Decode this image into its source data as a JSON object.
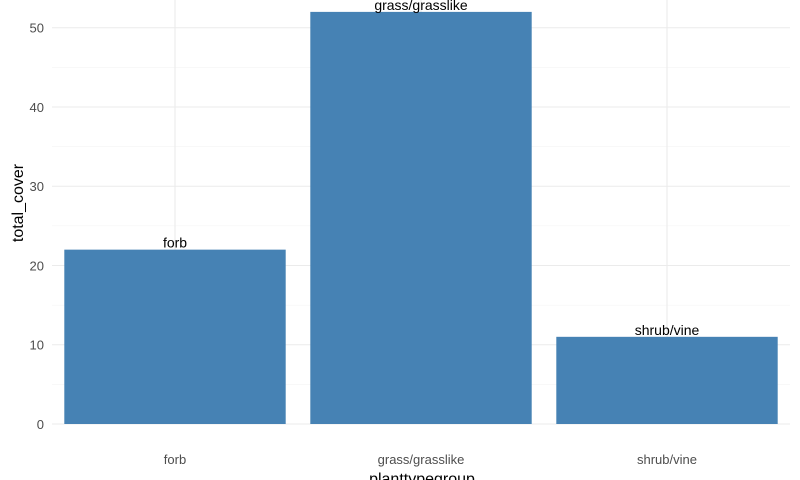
{
  "chart_data": {
    "type": "bar",
    "categories": [
      "forb",
      "grass/grasslike",
      "shrub/vine"
    ],
    "values": [
      22,
      52,
      11
    ],
    "data_labels": [
      "forb",
      "grass/grasslike",
      "shrub/vine"
    ],
    "xlabel": "planttypegroup",
    "ylabel": "total_cover",
    "ylim": [
      0,
      53.5
    ],
    "yticks": [
      0,
      10,
      20,
      30,
      40,
      50
    ],
    "grid": true,
    "legend": "none",
    "colors": {
      "bar": "#4682B4",
      "grid": "#ebebeb",
      "tick_text": "#4d4d4d",
      "title_text": "#000000"
    }
  }
}
